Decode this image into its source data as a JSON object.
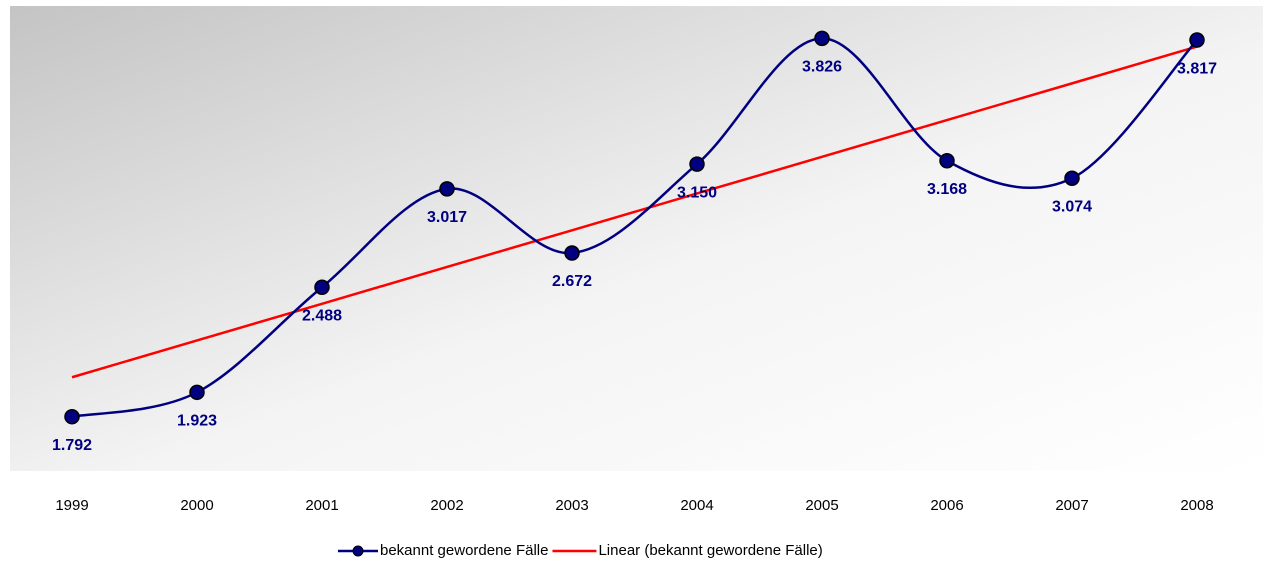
{
  "chart_data": {
    "type": "line",
    "categories": [
      "1999",
      "2000",
      "2001",
      "2002",
      "2003",
      "2004",
      "2005",
      "2006",
      "2007",
      "2008"
    ],
    "series": [
      {
        "name": "bekannt gewordene Fälle",
        "color": "#000080",
        "values": [
          1792,
          1923,
          2488,
          3017,
          2672,
          3150,
          3826,
          3168,
          3074,
          3817
        ],
        "value_labels": [
          "1.792",
          "1.923",
          "2.488",
          "3.017",
          "2.672",
          "3.150",
          "3.826",
          "3.168",
          "3.074",
          "3.817"
        ],
        "smooth": true,
        "markers": true
      },
      {
        "name": "Linear (bekannt gewordene Fälle)",
        "color": "#ff0000",
        "values": [
          2004,
          2202,
          2399,
          2597,
          2794,
          2992,
          3189,
          3387,
          3584,
          3782
        ]
      }
    ],
    "ylim": [
      1500,
      4000
    ],
    "legend": "bottom"
  }
}
